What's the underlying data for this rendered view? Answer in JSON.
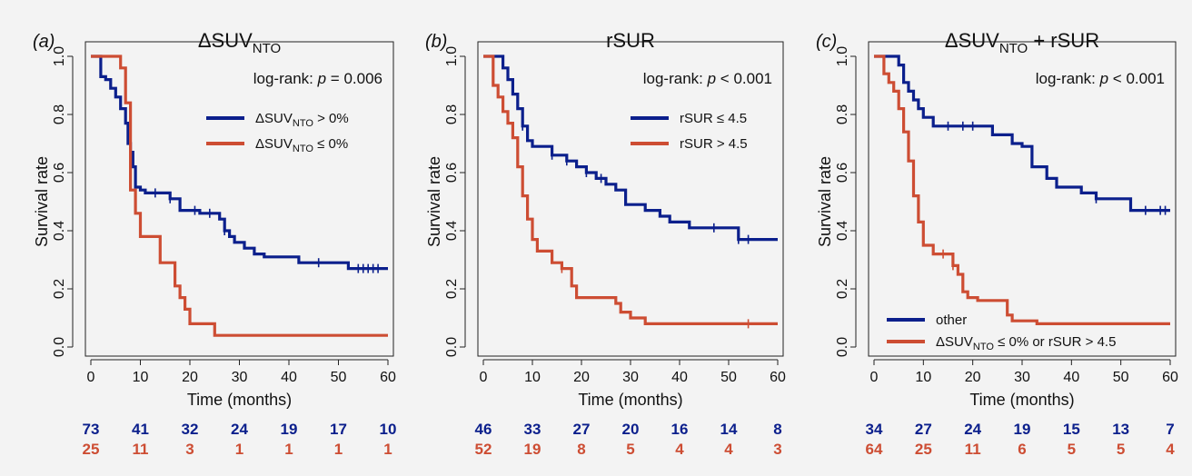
{
  "colors": {
    "blue": "#0b1f8c",
    "red": "#cd4d33",
    "axis": "#222222",
    "background": "#f3f3f3"
  },
  "chart_data": [
    {
      "type": "line",
      "panel_label": "(a)",
      "title": "ΔSUV",
      "title_sub": "NTO",
      "title_suffix": "",
      "annotation_prefix": "log-rank: ",
      "annotation_p": "p",
      "annotation_value": " = 0.006",
      "xlabel": "Time (months)",
      "ylabel": "Survival rate",
      "xlim": [
        0,
        60
      ],
      "ylim": [
        0,
        1
      ],
      "xticks": [
        "0",
        "10",
        "20",
        "30",
        "40",
        "50",
        "60"
      ],
      "yticks": [
        "0.0",
        "0.2",
        "0.4",
        "0.6",
        "0.8",
        "1.0"
      ],
      "legend_position": "top-right",
      "series": [
        {
          "legend": {
            "main": "ΔSUV",
            "sub": "NTO",
            "suffix": " > 0%"
          },
          "color": "#0b1f8c",
          "x": [
            0,
            2,
            3,
            4,
            5,
            6,
            7,
            7.5,
            8,
            8.5,
            9,
            10,
            11,
            13,
            16,
            18,
            19,
            22,
            25,
            26,
            27,
            28,
            29,
            31,
            33,
            35,
            37,
            42,
            46,
            52,
            54
          ],
          "y": [
            1.0,
            0.93,
            0.92,
            0.89,
            0.86,
            0.82,
            0.77,
            0.7,
            0.67,
            0.62,
            0.55,
            0.54,
            0.53,
            0.53,
            0.51,
            0.47,
            0.47,
            0.46,
            0.46,
            0.44,
            0.4,
            0.38,
            0.36,
            0.34,
            0.32,
            0.31,
            0.31,
            0.29,
            0.29,
            0.27,
            0.27
          ],
          "censor_x": [
            13,
            16,
            21,
            24,
            27,
            46,
            54,
            55,
            56,
            57,
            58
          ],
          "risk": [
            "73",
            "41",
            "32",
            "24",
            "19",
            "17",
            "10"
          ]
        },
        {
          "legend": {
            "main": "ΔSUV",
            "sub": "NTO",
            "suffix": " ≤ 0%"
          },
          "color": "#cd4d33",
          "x": [
            0,
            6,
            7,
            8,
            9,
            10,
            14,
            17,
            18,
            19,
            20,
            25
          ],
          "y": [
            1.0,
            0.96,
            0.84,
            0.54,
            0.46,
            0.38,
            0.29,
            0.21,
            0.17,
            0.13,
            0.08,
            0.04
          ],
          "censor_x": [],
          "risk": [
            "25",
            "11",
            "3",
            "1",
            "1",
            "1",
            "1"
          ]
        }
      ]
    },
    {
      "type": "line",
      "panel_label": "(b)",
      "title": "rSUR",
      "title_sub": "",
      "title_suffix": "",
      "annotation_prefix": "log-rank: ",
      "annotation_p": "p",
      "annotation_value": " < 0.001",
      "xlabel": "Time (months)",
      "ylabel": "Survival rate",
      "xlim": [
        0,
        60
      ],
      "ylim": [
        0,
        1
      ],
      "xticks": [
        "0",
        "10",
        "20",
        "30",
        "40",
        "50",
        "60"
      ],
      "yticks": [
        "0.0",
        "0.2",
        "0.4",
        "0.6",
        "0.8",
        "1.0"
      ],
      "legend_position": "top-right",
      "series": [
        {
          "legend": {
            "main": "rSUR ≤ 4.5",
            "sub": "",
            "suffix": ""
          },
          "color": "#0b1f8c",
          "x": [
            0,
            4,
            5,
            6,
            7,
            8,
            9,
            10,
            14,
            17,
            19,
            21,
            23,
            25,
            27,
            29,
            33,
            36,
            38,
            42,
            47,
            52
          ],
          "y": [
            1.0,
            0.96,
            0.92,
            0.87,
            0.82,
            0.76,
            0.71,
            0.69,
            0.66,
            0.64,
            0.62,
            0.6,
            0.58,
            0.56,
            0.54,
            0.49,
            0.47,
            0.45,
            0.43,
            0.41,
            0.41,
            0.37
          ],
          "censor_x": [
            8,
            14,
            17,
            21,
            24,
            47,
            52,
            54
          ],
          "risk": [
            "46",
            "33",
            "27",
            "20",
            "16",
            "14",
            "8"
          ]
        },
        {
          "legend": {
            "main": "rSUR > 4.5",
            "sub": "",
            "suffix": ""
          },
          "color": "#cd4d33",
          "x": [
            0,
            2,
            3,
            4,
            5,
            6,
            7,
            8,
            9,
            10,
            11,
            14,
            16,
            18,
            19,
            27,
            28,
            30,
            33
          ],
          "y": [
            1.0,
            0.9,
            0.86,
            0.81,
            0.77,
            0.72,
            0.62,
            0.52,
            0.44,
            0.37,
            0.33,
            0.29,
            0.27,
            0.21,
            0.17,
            0.15,
            0.12,
            0.1,
            0.08
          ],
          "censor_x": [
            16,
            54
          ],
          "risk": [
            "52",
            "19",
            "8",
            "5",
            "4",
            "4",
            "3"
          ]
        }
      ]
    },
    {
      "type": "line",
      "panel_label": "(c)",
      "title": "ΔSUV",
      "title_sub": "NTO",
      "title_suffix": " + rSUR",
      "annotation_prefix": "log-rank: ",
      "annotation_p": "p",
      "annotation_value": " < 0.001",
      "xlabel": "Time (months)",
      "ylabel": "Survival rate",
      "xlim": [
        0,
        60
      ],
      "ylim": [
        0,
        1
      ],
      "xticks": [
        "0",
        "10",
        "20",
        "30",
        "40",
        "50",
        "60"
      ],
      "yticks": [
        "0.0",
        "0.2",
        "0.4",
        "0.6",
        "0.8",
        "1.0"
      ],
      "legend_position": "bottom-right",
      "series": [
        {
          "legend": {
            "main": "other",
            "sub": "",
            "suffix": ""
          },
          "color": "#0b1f8c",
          "x": [
            0,
            5,
            6,
            7,
            8,
            9,
            10,
            12,
            14,
            24,
            28,
            30,
            32,
            35,
            37,
            42,
            45,
            48,
            52,
            58
          ],
          "y": [
            1.0,
            0.97,
            0.91,
            0.88,
            0.85,
            0.82,
            0.79,
            0.76,
            0.76,
            0.73,
            0.7,
            0.69,
            0.62,
            0.58,
            0.55,
            0.53,
            0.51,
            0.51,
            0.47,
            0.47
          ],
          "censor_x": [
            15,
            18,
            20,
            45,
            55,
            58,
            59
          ],
          "risk": [
            "34",
            "27",
            "24",
            "19",
            "15",
            "13",
            "7"
          ]
        },
        {
          "legend": {
            "main": "ΔSUV",
            "sub": "NTO",
            "suffix": " ≤ 0% or rSUR > 4.5"
          },
          "color": "#cd4d33",
          "x": [
            0,
            2,
            3,
            4,
            5,
            6,
            7,
            8,
            9,
            10,
            12,
            16,
            17,
            18,
            19,
            21,
            27,
            28,
            33
          ],
          "y": [
            1.0,
            0.94,
            0.91,
            0.88,
            0.82,
            0.74,
            0.64,
            0.52,
            0.43,
            0.35,
            0.32,
            0.28,
            0.25,
            0.19,
            0.17,
            0.16,
            0.11,
            0.09,
            0.08
          ],
          "censor_x": [
            14,
            16
          ],
          "risk": [
            "64",
            "25",
            "11",
            "6",
            "5",
            "5",
            "4"
          ]
        }
      ]
    }
  ]
}
